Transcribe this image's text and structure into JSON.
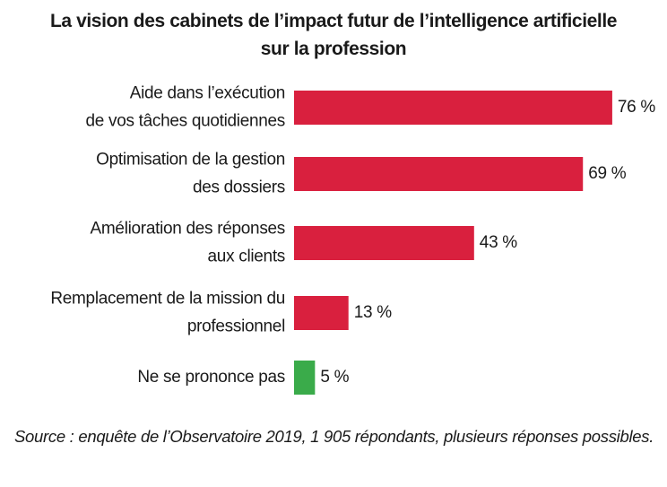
{
  "chart_data": {
    "type": "bar",
    "orientation": "horizontal",
    "title": "La vision des cabinets de l’impact futur de l’intelligence artificielle sur la profession",
    "categories": [
      "Aide dans l’exécution\nde vos tâches quotidiennes",
      "Optimisation de la gestion\ndes dossiers",
      "Amélioration des réponses\naux clients",
      "Remplacement de la mission du\nprofessionnel",
      "Ne se prononce pas"
    ],
    "values": [
      76,
      69,
      43,
      13,
      5
    ],
    "value_labels": [
      "76 %",
      "69 %",
      "43 %",
      "13 %",
      "5 %"
    ],
    "colors": [
      "#d9203e",
      "#d9203e",
      "#d9203e",
      "#d9203e",
      "#3aab4a"
    ],
    "source": "Source : enquête de l’Observatoire 2019, 1 905 répondants, plusieurs réponses possibles."
  }
}
